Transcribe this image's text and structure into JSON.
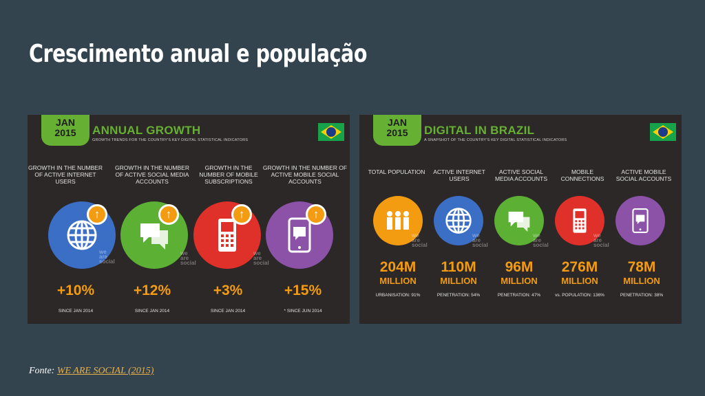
{
  "slide": {
    "title": "Crescimento anual e população",
    "caption_prefix": "Fonte:",
    "caption_link": "WE ARE SOCIAL (2015)"
  },
  "left_panel": {
    "badge_month": "JAN",
    "badge_year": "2015",
    "heading": "ANNUAL GROWTH",
    "subheading": "GROWTH TRENDS FOR THE COUNTRY'S KEY DIGITAL STATISTICAL INDICATORS",
    "watermark": "we are social",
    "columns": [
      {
        "label": "GROWTH IN THE NUMBER OF ACTIVE INTERNET USERS",
        "value": "+10%",
        "since": "SINCE JAN 2014",
        "icon": "globe-icon",
        "color": "#3b6fc6"
      },
      {
        "label": "GROWTH IN THE NUMBER OF ACTIVE SOCIAL MEDIA ACCOUNTS",
        "value": "+12%",
        "since": "SINCE JAN 2014",
        "icon": "chat-icon",
        "color": "#5cb033"
      },
      {
        "label": "GROWTH IN THE NUMBER OF MOBILE SUBSCRIPTIONS",
        "value": "+3%",
        "since": "SINCE JAN 2014",
        "icon": "phone-icon",
        "color": "#e0302a"
      },
      {
        "label": "GROWTH IN THE NUMBER OF ACTIVE MOBILE SOCIAL ACCOUNTS",
        "value": "+15%",
        "since": "* SINCE JUN 2014",
        "icon": "mobile-chat-icon",
        "color": "#8b52a8"
      }
    ]
  },
  "right_panel": {
    "badge_month": "JAN",
    "badge_year": "2015",
    "heading": "DIGITAL IN BRAZIL",
    "subheading": "A SNAPSHOT OF THE COUNTRY'S KEY DIGITAL STATISTICAL INDICATORS",
    "watermark": "we are social",
    "columns": [
      {
        "label": "TOTAL POPULATION",
        "value": "204M",
        "unit": "MILLION",
        "stat": "URBANISATION: 91%",
        "icon": "people-icon",
        "color": "#f39c12"
      },
      {
        "label": "ACTIVE INTERNET USERS",
        "value": "110M",
        "unit": "MILLION",
        "stat": "PENETRATION: 54%",
        "icon": "globe-icon",
        "color": "#3b6fc6"
      },
      {
        "label": "ACTIVE SOCIAL MEDIA ACCOUNTS",
        "value": "96M",
        "unit": "MILLION",
        "stat": "PENETRATION: 47%",
        "icon": "chat-icon",
        "color": "#5cb033"
      },
      {
        "label": "MOBILE CONNECTIONS",
        "value": "276M",
        "unit": "MILLION",
        "stat": "vs. POPULATION: 136%",
        "icon": "phone-icon",
        "color": "#e0302a"
      },
      {
        "label": "ACTIVE MOBILE SOCIAL ACCOUNTS",
        "value": "78M",
        "unit": "MILLION",
        "stat": "PENETRATION: 38%",
        "icon": "mobile-chat-icon",
        "color": "#8b52a8"
      }
    ]
  }
}
